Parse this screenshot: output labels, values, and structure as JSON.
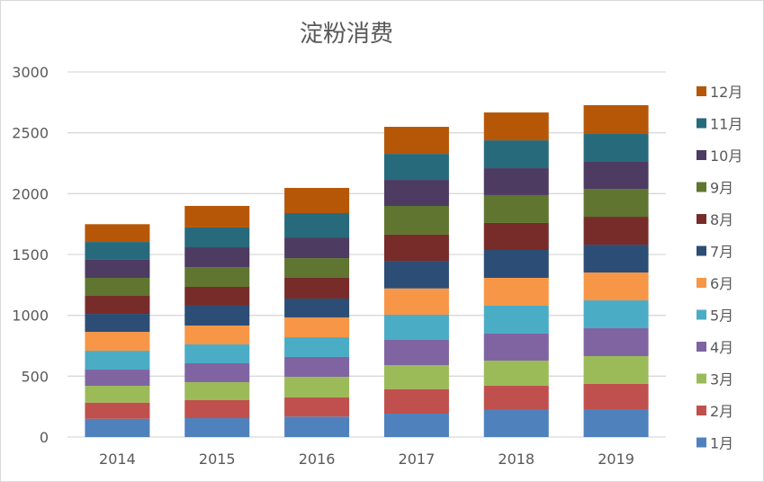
{
  "chart_data": {
    "type": "bar",
    "stacked": true,
    "title": "淀粉消费",
    "xlabel": "",
    "ylabel": "",
    "ylim": [
      0,
      3000
    ],
    "yticks": [
      0,
      500,
      1000,
      1500,
      2000,
      2500,
      3000
    ],
    "grid": true,
    "legend_position": "right",
    "categories": [
      "2014",
      "2015",
      "2016",
      "2017",
      "2018",
      "2019"
    ],
    "series": [
      {
        "name": "1月",
        "color": "#4F81BD",
        "values": [
          150,
          155,
          168,
          192,
          222,
          229
        ]
      },
      {
        "name": "2月",
        "color": "#C0504D",
        "values": [
          133,
          148,
          157,
          202,
          199,
          207
        ]
      },
      {
        "name": "3月",
        "color": "#9BBB59",
        "values": [
          138,
          148,
          170,
          197,
          207,
          229
        ]
      },
      {
        "name": "4月",
        "color": "#8064A2",
        "values": [
          133,
          155,
          163,
          207,
          222,
          229
        ]
      },
      {
        "name": "5月",
        "color": "#4BACC6",
        "values": [
          155,
          155,
          162,
          207,
          229,
          229
        ]
      },
      {
        "name": "6月",
        "color": "#F79646",
        "values": [
          155,
          155,
          163,
          216,
          229,
          229
        ]
      },
      {
        "name": "7月",
        "color": "#2C4D75",
        "values": [
          148,
          163,
          155,
          227,
          229,
          229
        ]
      },
      {
        "name": "8月",
        "color": "#772C2A",
        "values": [
          148,
          155,
          170,
          215,
          222,
          229
        ]
      },
      {
        "name": "9月",
        "color": "#5F7530",
        "values": [
          148,
          162,
          162,
          236,
          229,
          229
        ]
      },
      {
        "name": "10月",
        "color": "#4D3B62",
        "values": [
          148,
          163,
          170,
          214,
          221,
          222
        ]
      },
      {
        "name": "11月",
        "color": "#276A7C",
        "values": [
          147,
          163,
          200,
          214,
          229,
          229
        ]
      },
      {
        "name": "12月",
        "color": "#B65708",
        "values": [
          146,
          177,
          207,
          222,
          229,
          237
        ]
      }
    ]
  }
}
